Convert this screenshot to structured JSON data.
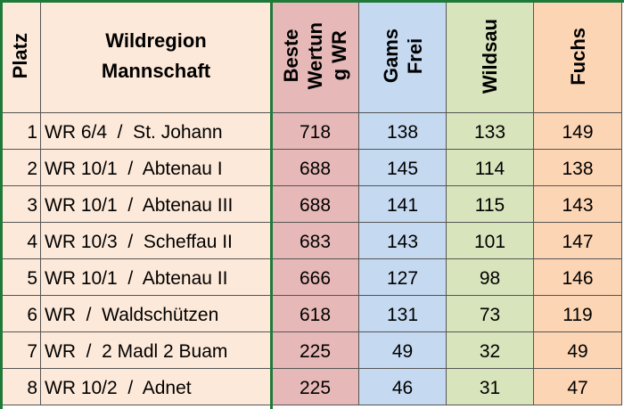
{
  "table": {
    "header": [
      [
        "Platz"
      ],
      [
        "Wildregion",
        "Mannschaft"
      ],
      [
        "Beste",
        "Wertun",
        "g WR"
      ],
      [
        "Gams",
        "Frei"
      ],
      [
        "Wildsau"
      ],
      [
        "Fuchs"
      ]
    ],
    "rows": [
      [
        1,
        "WR 6/4  /  St. Johann",
        718,
        138,
        133,
        149
      ],
      [
        2,
        "WR 10/1  /  Abtenau I",
        688,
        145,
        114,
        138
      ],
      [
        3,
        "WR 10/1  /  Abtenau III",
        688,
        141,
        115,
        143
      ],
      [
        4,
        "WR 10/3  /  Scheffau II",
        683,
        143,
        101,
        147
      ],
      [
        5,
        "WR 10/1  /  Abtenau II",
        666,
        127,
        98,
        146
      ],
      [
        6,
        "WR  /  Waldschützen",
        618,
        131,
        73,
        119
      ],
      [
        7,
        "WR  /  2 Madl 2 Buam",
        225,
        49,
        32,
        49
      ],
      [
        8,
        "WR 10/2  /  Adnet",
        225,
        46,
        31,
        47
      ]
    ]
  }
}
